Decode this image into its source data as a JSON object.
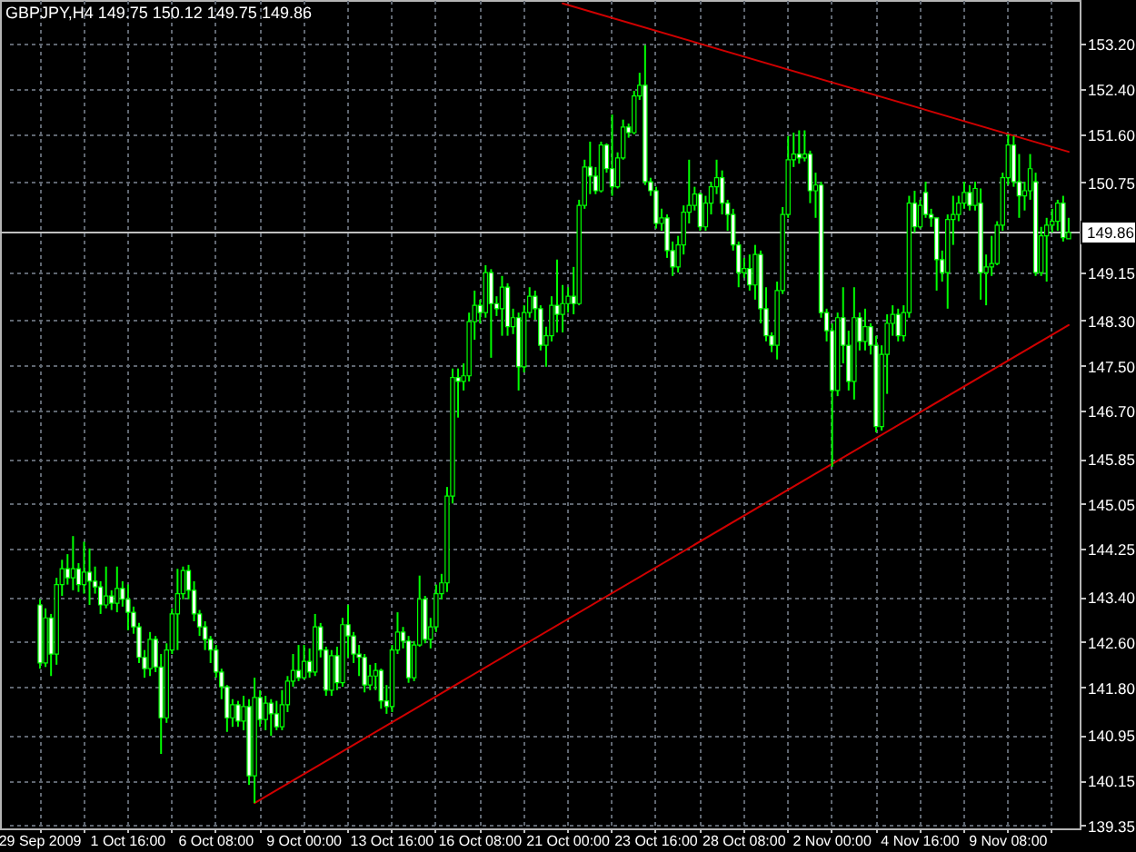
{
  "chart_data": {
    "type": "candlestick",
    "title": "GBPJPY,H4 149.75 150.12 149.75 149.86",
    "categories": [
      "29 Sep 2009",
      null,
      null,
      null,
      null,
      null,
      null,
      null,
      null,
      null,
      null,
      null,
      null,
      null,
      null,
      null,
      "1 Oct 16:00",
      null,
      null,
      null,
      null,
      null,
      null,
      null,
      null,
      null,
      null,
      null,
      null,
      null,
      null,
      null,
      "6 Oct 08:00",
      null,
      null,
      null,
      null,
      null,
      null,
      null,
      null,
      null,
      null,
      null,
      null,
      null,
      null,
      null,
      "9 Oct 00:00",
      null,
      null,
      null,
      null,
      null,
      null,
      null,
      null,
      null,
      null,
      null,
      null,
      null,
      null,
      null,
      "13 Oct 16:00",
      null,
      null,
      null,
      null,
      null,
      null,
      null,
      null,
      null,
      null,
      null,
      null,
      null,
      null,
      null,
      "16 Oct 08:00",
      null,
      null,
      null,
      null,
      null,
      null,
      null,
      null,
      null,
      null,
      null,
      null,
      null,
      null,
      null,
      "21 Oct 00:00",
      null,
      null,
      null,
      null,
      null,
      null,
      null,
      null,
      null,
      null,
      null,
      null,
      null,
      null,
      null,
      "23 Oct 16:00",
      null,
      null,
      null,
      null,
      null,
      null,
      null,
      null,
      null,
      null,
      null,
      null,
      null,
      null,
      null,
      "28 Oct 08:00",
      null,
      null,
      null,
      null,
      null,
      null,
      null,
      null,
      null,
      null,
      null,
      null,
      null,
      null,
      null,
      "2 Nov 00:00",
      null,
      null,
      null,
      null,
      null,
      null,
      null,
      null,
      null,
      null,
      null,
      null,
      null,
      null,
      null,
      "4 Nov 16:00",
      null,
      null,
      null,
      null,
      null,
      null,
      null,
      null,
      null,
      null,
      null,
      null,
      null,
      null,
      null,
      "9 Nov 08:00",
      null,
      null,
      null,
      null,
      null,
      null,
      null,
      null,
      null,
      null,
      null
    ],
    "color": "#00ff00",
    "ohlc": [
      [
        143.26,
        143.36,
        142.13,
        142.23
      ],
      [
        142.23,
        143.2,
        142.16,
        143.03
      ],
      [
        143.03,
        143.1,
        142.0,
        142.39
      ],
      [
        142.39,
        143.74,
        142.2,
        143.62
      ],
      [
        143.62,
        144.06,
        143.42,
        143.9
      ],
      [
        143.9,
        144.16,
        143.62,
        143.74
      ],
      [
        143.74,
        144.48,
        143.52,
        143.9
      ],
      [
        143.9,
        144.0,
        143.49,
        143.62
      ],
      [
        143.62,
        144.38,
        143.46,
        143.84
      ],
      [
        143.84,
        144.26,
        143.26,
        143.68
      ],
      [
        143.68,
        143.94,
        143.46,
        143.58
      ],
      [
        143.58,
        143.68,
        143.1,
        143.26
      ],
      [
        143.26,
        143.94,
        143.2,
        143.42
      ],
      [
        143.42,
        143.52,
        143.17,
        143.29
      ],
      [
        143.29,
        143.94,
        143.13,
        143.55
      ],
      [
        143.55,
        143.68,
        143.23,
        143.36
      ],
      [
        143.36,
        143.62,
        142.81,
        143.13
      ],
      [
        143.13,
        143.23,
        142.75,
        142.87
      ],
      [
        142.87,
        142.94,
        142.23,
        142.33
      ],
      [
        142.33,
        142.46,
        141.97,
        142.13
      ],
      [
        142.13,
        142.78,
        142.0,
        142.65
      ],
      [
        142.65,
        142.71,
        142.07,
        142.16
      ],
      [
        142.16,
        142.39,
        140.62,
        141.26
      ],
      [
        141.26,
        142.58,
        141.17,
        142.46
      ],
      [
        142.46,
        143.2,
        142.39,
        143.1
      ],
      [
        143.1,
        143.9,
        142.46,
        143.46
      ],
      [
        143.46,
        143.94,
        143.36,
        143.87
      ],
      [
        143.87,
        143.97,
        143.36,
        143.52
      ],
      [
        143.52,
        143.68,
        142.97,
        143.1
      ],
      [
        143.1,
        143.17,
        142.71,
        142.87
      ],
      [
        142.87,
        142.97,
        142.46,
        142.65
      ],
      [
        142.65,
        142.71,
        142.23,
        142.46
      ],
      [
        142.46,
        142.55,
        141.97,
        142.07
      ],
      [
        142.07,
        142.13,
        141.59,
        141.81
      ],
      [
        141.81,
        141.84,
        141.01,
        141.26
      ],
      [
        141.26,
        141.59,
        141.1,
        141.49
      ],
      [
        141.49,
        141.56,
        141.1,
        141.2
      ],
      [
        141.2,
        141.65,
        141.04,
        141.46
      ],
      [
        141.46,
        141.59,
        140.07,
        140.23
      ],
      [
        140.23,
        141.97,
        139.75,
        141.62
      ],
      [
        141.62,
        141.75,
        141.1,
        141.23
      ],
      [
        141.23,
        141.65,
        141.04,
        141.52
      ],
      [
        141.52,
        141.59,
        140.94,
        141.33
      ],
      [
        141.33,
        141.56,
        141.04,
        141.1
      ],
      [
        141.1,
        141.75,
        141.04,
        141.49
      ],
      [
        141.49,
        142.0,
        141.36,
        141.91
      ],
      [
        141.91,
        142.39,
        141.81,
        142.1
      ],
      [
        142.1,
        142.55,
        141.91,
        141.97
      ],
      [
        141.97,
        142.55,
        141.94,
        142.26
      ],
      [
        142.26,
        142.49,
        141.97,
        142.07
      ],
      [
        142.07,
        143.1,
        142.0,
        142.87
      ],
      [
        142.87,
        142.94,
        142.33,
        142.46
      ],
      [
        142.46,
        142.52,
        141.65,
        141.75
      ],
      [
        141.75,
        142.46,
        141.65,
        142.36
      ],
      [
        142.36,
        142.52,
        141.75,
        141.88
      ],
      [
        141.88,
        143.03,
        141.81,
        142.91
      ],
      [
        142.91,
        143.26,
        142.33,
        142.71
      ],
      [
        142.71,
        142.78,
        142.23,
        142.39
      ],
      [
        142.39,
        142.55,
        142.0,
        142.33
      ],
      [
        142.33,
        142.39,
        141.71,
        141.84
      ],
      [
        141.84,
        142.2,
        141.75,
        142.0
      ],
      [
        142.0,
        142.23,
        141.75,
        142.1
      ],
      [
        142.1,
        142.13,
        141.42,
        141.56
      ],
      [
        141.56,
        141.84,
        141.33,
        141.46
      ],
      [
        141.46,
        142.55,
        141.36,
        142.46
      ],
      [
        142.46,
        143.13,
        142.39,
        142.78
      ],
      [
        142.78,
        142.87,
        142.49,
        142.62
      ],
      [
        142.62,
        142.71,
        141.88,
        141.97
      ],
      [
        141.97,
        142.62,
        141.91,
        142.55
      ],
      [
        142.55,
        143.78,
        142.52,
        143.36
      ],
      [
        143.36,
        143.42,
        142.58,
        142.65
      ],
      [
        142.65,
        143.03,
        142.49,
        142.87
      ],
      [
        142.87,
        143.62,
        142.78,
        143.46
      ],
      [
        143.46,
        143.81,
        143.36,
        143.65
      ],
      [
        143.65,
        145.35,
        143.49,
        145.19
      ],
      [
        145.19,
        147.45,
        145.06,
        147.29
      ],
      [
        147.29,
        147.45,
        146.58,
        147.22
      ],
      [
        147.22,
        147.54,
        147.06,
        147.32
      ],
      [
        147.32,
        148.44,
        147.22,
        148.28
      ],
      [
        148.28,
        148.83,
        147.96,
        148.57
      ],
      [
        148.57,
        148.67,
        148.25,
        148.44
      ],
      [
        148.44,
        149.28,
        148.35,
        149.15
      ],
      [
        149.15,
        149.21,
        147.64,
        148.6
      ],
      [
        148.6,
        148.73,
        148.38,
        148.51
      ],
      [
        148.51,
        149.09,
        148.03,
        148.89
      ],
      [
        148.89,
        148.96,
        148.03,
        148.19
      ],
      [
        148.19,
        148.51,
        148.06,
        148.35
      ],
      [
        148.35,
        148.44,
        147.06,
        147.48
      ],
      [
        147.48,
        148.57,
        147.38,
        148.44
      ],
      [
        148.44,
        148.89,
        148.35,
        148.73
      ],
      [
        148.73,
        148.83,
        148.31,
        148.51
      ],
      [
        148.51,
        148.57,
        147.77,
        147.86
      ],
      [
        147.86,
        148.19,
        147.48,
        148.03
      ],
      [
        148.03,
        148.73,
        147.93,
        148.57
      ],
      [
        148.57,
        149.38,
        148.09,
        148.41
      ],
      [
        148.41,
        148.93,
        148.09,
        148.6
      ],
      [
        148.6,
        148.89,
        148.44,
        148.73
      ],
      [
        148.73,
        149.25,
        148.41,
        148.6
      ],
      [
        148.6,
        150.44,
        148.57,
        150.34
      ],
      [
        150.34,
        151.15,
        150.28,
        151.02
      ],
      [
        151.02,
        151.47,
        150.54,
        150.86
      ],
      [
        150.86,
        151.02,
        150.54,
        150.6
      ],
      [
        150.6,
        151.47,
        150.57,
        151.41
      ],
      [
        151.41,
        151.44,
        150.92,
        150.99
      ],
      [
        150.99,
        151.95,
        150.51,
        150.67
      ],
      [
        150.67,
        151.28,
        150.64,
        151.18
      ],
      [
        151.18,
        151.86,
        151.15,
        151.73
      ],
      [
        151.73,
        151.79,
        151.54,
        151.63
      ],
      [
        151.63,
        152.37,
        151.6,
        152.28
      ],
      [
        152.28,
        152.69,
        152.21,
        152.47
      ],
      [
        152.47,
        153.18,
        150.7,
        150.76
      ],
      [
        150.76,
        150.83,
        150.51,
        150.6
      ],
      [
        150.6,
        150.67,
        149.93,
        150.02
      ],
      [
        150.02,
        150.28,
        149.89,
        150.12
      ],
      [
        150.12,
        150.18,
        149.41,
        149.54
      ],
      [
        149.54,
        149.7,
        149.09,
        149.25
      ],
      [
        149.25,
        149.8,
        149.15,
        149.64
      ],
      [
        149.64,
        150.34,
        149.47,
        150.22
      ],
      [
        150.22,
        151.15,
        150.02,
        150.34
      ],
      [
        150.34,
        150.67,
        150.25,
        150.54
      ],
      [
        150.54,
        150.57,
        149.89,
        149.96
      ],
      [
        149.96,
        150.51,
        149.89,
        150.38
      ],
      [
        150.38,
        150.76,
        150.18,
        150.67
      ],
      [
        150.67,
        151.15,
        150.54,
        150.83
      ],
      [
        150.83,
        150.96,
        150.18,
        150.38
      ],
      [
        150.38,
        150.44,
        149.89,
        150.18
      ],
      [
        150.18,
        150.28,
        149.54,
        149.64
      ],
      [
        149.64,
        149.7,
        148.89,
        149.15
      ],
      [
        149.15,
        149.41,
        149.06,
        149.22
      ],
      [
        149.22,
        149.47,
        148.83,
        148.93
      ],
      [
        148.93,
        149.64,
        148.67,
        149.47
      ],
      [
        149.47,
        149.54,
        148.25,
        148.51
      ],
      [
        148.51,
        148.89,
        147.93,
        148.03
      ],
      [
        148.03,
        148.09,
        147.74,
        147.86
      ],
      [
        147.86,
        148.99,
        147.61,
        148.83
      ],
      [
        148.83,
        150.31,
        148.77,
        150.18
      ],
      [
        150.18,
        151.57,
        150.12,
        151.15
      ],
      [
        151.15,
        151.63,
        151.02,
        151.25
      ],
      [
        151.25,
        151.67,
        151.08,
        151.18
      ],
      [
        151.18,
        151.67,
        151.12,
        151.25
      ],
      [
        151.25,
        151.31,
        150.38,
        150.6
      ],
      [
        150.6,
        150.92,
        150.12,
        150.7
      ],
      [
        150.7,
        150.76,
        148.35,
        148.44
      ],
      [
        148.44,
        148.51,
        147.93,
        148.12
      ],
      [
        148.12,
        148.25,
        145.71,
        147.06
      ],
      [
        147.06,
        148.44,
        146.96,
        148.35
      ],
      [
        148.35,
        148.89,
        147.54,
        147.86
      ],
      [
        147.86,
        148.12,
        147.06,
        147.22
      ],
      [
        147.22,
        148.89,
        146.9,
        148.35
      ],
      [
        148.35,
        148.44,
        147.77,
        147.93
      ],
      [
        147.93,
        148.51,
        147.77,
        148.19
      ],
      [
        148.19,
        148.25,
        147.7,
        147.86
      ],
      [
        147.86,
        148.03,
        146.32,
        146.42
      ],
      [
        146.42,
        147.86,
        146.35,
        147.7
      ],
      [
        147.7,
        148.41,
        147.0,
        148.25
      ],
      [
        148.25,
        148.57,
        148.03,
        148.41
      ],
      [
        148.41,
        148.51,
        147.93,
        148.03
      ],
      [
        148.03,
        148.57,
        147.93,
        148.44
      ],
      [
        148.44,
        150.51,
        148.35,
        150.38
      ],
      [
        150.38,
        150.6,
        149.86,
        149.96
      ],
      [
        149.96,
        150.44,
        149.93,
        150.34
      ],
      [
        150.57,
        150.76,
        150.12,
        150.18
      ],
      [
        150.18,
        150.28,
        149.96,
        150.12
      ],
      [
        150.12,
        150.12,
        148.83,
        149.38
      ],
      [
        149.38,
        149.54,
        148.99,
        149.15
      ],
      [
        149.15,
        150.18,
        148.51,
        150.09
      ],
      [
        150.09,
        150.51,
        149.64,
        150.18
      ],
      [
        150.18,
        150.51,
        150.06,
        150.38
      ],
      [
        150.38,
        150.76,
        150.28,
        150.57
      ],
      [
        150.57,
        150.7,
        150.25,
        150.34
      ],
      [
        150.34,
        150.76,
        150.25,
        150.64
      ],
      [
        150.38,
        150.64,
        148.67,
        149.15
      ],
      [
        149.15,
        149.47,
        148.57,
        149.25
      ],
      [
        149.25,
        149.8,
        149.09,
        149.31
      ],
      [
        149.31,
        150.06,
        149.28,
        149.99
      ],
      [
        149.99,
        150.92,
        149.89,
        150.83
      ],
      [
        150.83,
        151.6,
        150.7,
        151.41
      ],
      [
        151.41,
        151.57,
        150.67,
        150.76
      ],
      [
        150.76,
        151.25,
        150.12,
        150.51
      ],
      [
        150.51,
        150.76,
        150.25,
        150.6
      ],
      [
        150.6,
        151.25,
        150.44,
        150.99
      ],
      [
        150.76,
        150.92,
        149.09,
        149.15
      ],
      [
        149.15,
        149.96,
        149.09,
        149.8
      ],
      [
        149.8,
        150.12,
        148.99,
        149.99
      ],
      [
        149.99,
        150.28,
        149.86,
        150.06
      ],
      [
        150.06,
        150.44,
        149.89,
        150.38
      ],
      [
        150.38,
        150.51,
        149.7,
        149.77
      ],
      [
        149.75,
        150.12,
        149.75,
        149.86
      ]
    ],
    "series": [
      {
        "type": "line",
        "color": "#d00000",
        "values": [
          null,
          null,
          null,
          null,
          null,
          null,
          null,
          null,
          null,
          null,
          null,
          null,
          null,
          null,
          null,
          null,
          null,
          null,
          null,
          null,
          null,
          null,
          null,
          null,
          null,
          null,
          null,
          null,
          null,
          null,
          null,
          null,
          null,
          null,
          null,
          null,
          null,
          null,
          null,
          139.75,
          null,
          null,
          null,
          null,
          null,
          null,
          null,
          null,
          null,
          null,
          null,
          null,
          null,
          null,
          null,
          null,
          null,
          null,
          null,
          null,
          null,
          null,
          null,
          null,
          null,
          null,
          null,
          null,
          null,
          null,
          null,
          null,
          null,
          null,
          null,
          null,
          null,
          null,
          null,
          null,
          null,
          null,
          null,
          null,
          null,
          null,
          null,
          null,
          null,
          null,
          null,
          null,
          null,
          null,
          null,
          null,
          null,
          null,
          null,
          null,
          null,
          null,
          null,
          null,
          null,
          null,
          null,
          null,
          null,
          null,
          null,
          null,
          null,
          null,
          null,
          null,
          null,
          null,
          null,
          null,
          null,
          null,
          null,
          null,
          null,
          null,
          null,
          null,
          null,
          null,
          null,
          null,
          null,
          null,
          null,
          null,
          null,
          null,
          null,
          null,
          null,
          null,
          null,
          null,
          null,
          null,
          null,
          null,
          null,
          null,
          null,
          null,
          null,
          null,
          null,
          null,
          null,
          null,
          null,
          null,
          null,
          null,
          null,
          null,
          null,
          null,
          null,
          null,
          null,
          null,
          null,
          null,
          null,
          null,
          null,
          null,
          null,
          null,
          null,
          null,
          null,
          null,
          null,
          null,
          null,
          null,
          null,
          148.22
        ]
      },
      {
        "type": "line",
        "color": "#d00000",
        "values": [
          null,
          null,
          null,
          null,
          null,
          null,
          null,
          null,
          null,
          null,
          null,
          null,
          null,
          null,
          null,
          null,
          null,
          null,
          null,
          null,
          null,
          null,
          null,
          null,
          null,
          null,
          null,
          null,
          null,
          null,
          null,
          null,
          null,
          null,
          null,
          null,
          null,
          null,
          null,
          null,
          null,
          null,
          null,
          null,
          null,
          null,
          null,
          null,
          null,
          null,
          null,
          null,
          null,
          null,
          null,
          null,
          null,
          null,
          null,
          null,
          null,
          null,
          null,
          null,
          null,
          null,
          null,
          null,
          null,
          null,
          null,
          null,
          null,
          null,
          null,
          null,
          null,
          null,
          null,
          null,
          null,
          null,
          null,
          null,
          null,
          null,
          null,
          null,
          null,
          null,
          null,
          null,
          null,
          null,
          null,
          153.92,
          null,
          null,
          null,
          null,
          null,
          null,
          null,
          null,
          null,
          null,
          null,
          null,
          null,
          null,
          null,
          null,
          null,
          null,
          null,
          null,
          null,
          null,
          null,
          null,
          null,
          null,
          null,
          null,
          null,
          null,
          null,
          null,
          null,
          null,
          null,
          null,
          null,
          null,
          null,
          null,
          null,
          null,
          null,
          null,
          null,
          null,
          null,
          null,
          null,
          null,
          null,
          null,
          null,
          null,
          null,
          null,
          null,
          null,
          null,
          null,
          null,
          null,
          null,
          null,
          null,
          null,
          null,
          null,
          null,
          null,
          null,
          null,
          null,
          null,
          null,
          null,
          null,
          null,
          null,
          null,
          null,
          null,
          null,
          null,
          null,
          null,
          null,
          null,
          null,
          null,
          null,
          151.29
        ]
      }
    ],
    "ylim": [
      139.3,
      153.98
    ],
    "yticks": [
      {
        "value": 153.2,
        "label": "153.20"
      },
      {
        "value": 152.4,
        "label": "152.40"
      },
      {
        "value": 151.6,
        "label": "151.60"
      },
      {
        "value": 150.75,
        "label": "150.75"
      },
      {
        "value": 149.15,
        "label": "149.15"
      },
      {
        "value": 148.3,
        "label": "148.30"
      },
      {
        "value": 147.5,
        "label": "147.50"
      },
      {
        "value": 146.7,
        "label": "146.70"
      },
      {
        "value": 145.85,
        "label": "145.85"
      },
      {
        "value": 145.05,
        "label": "145.05"
      },
      {
        "value": 144.25,
        "label": "144.25"
      },
      {
        "value": 143.4,
        "label": "143.40"
      },
      {
        "value": 142.6,
        "label": "142.60"
      },
      {
        "value": 141.8,
        "label": "141.80"
      },
      {
        "value": 140.95,
        "label": "140.95"
      },
      {
        "value": 140.15,
        "label": "140.15"
      },
      {
        "value": 139.35,
        "label": "139.35"
      }
    ],
    "grid": true,
    "ref_lines": [
      {
        "axis": "y",
        "value": 149.86,
        "label": "149.86",
        "color": "#c0c0c0"
      }
    ]
  }
}
